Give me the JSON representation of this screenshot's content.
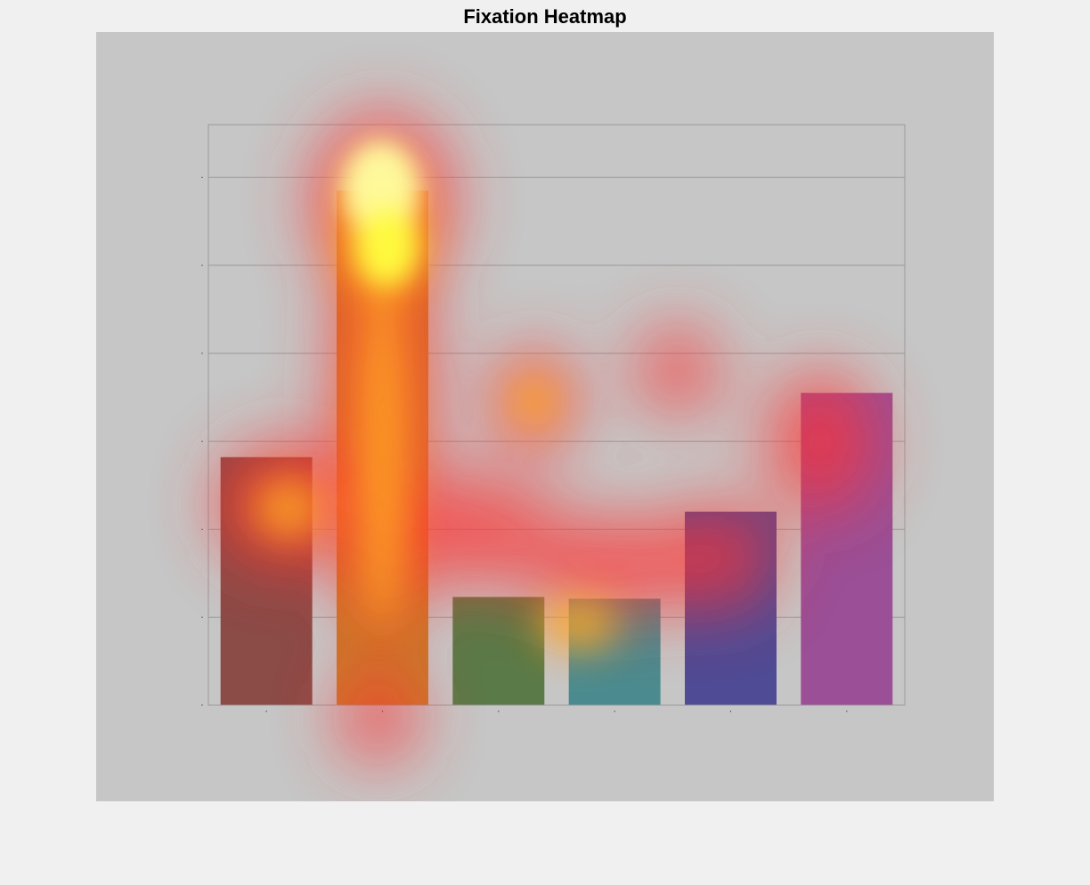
{
  "title": "Fixation Heatmap",
  "colors": {
    "page_bg": "#f0f0f0",
    "stimulus_bg": "#c6c6c6",
    "grid": "#9a9a9a",
    "heat_low": "#ff3030",
    "heat_mid": "#ffb020",
    "heat_high": "#ffffa0"
  },
  "chart_data": {
    "type": "bar",
    "title": "",
    "xlabel": "",
    "ylabel": "",
    "categories": [
      "",
      "",
      "",
      "",
      "",
      ""
    ],
    "values": [
      2.82,
      5.85,
      1.23,
      1.21,
      2.2,
      3.55
    ],
    "bar_colors": [
      "#8b4b47",
      "#c87a2a",
      "#5a7a48",
      "#4b8b8f",
      "#4f4b95",
      "#9a4f96"
    ],
    "ylim": [
      0,
      6.6
    ],
    "yticks": [
      0,
      1,
      2,
      3,
      4,
      5,
      6
    ],
    "grid": true,
    "legend": "none",
    "fixation_overlay": true
  }
}
